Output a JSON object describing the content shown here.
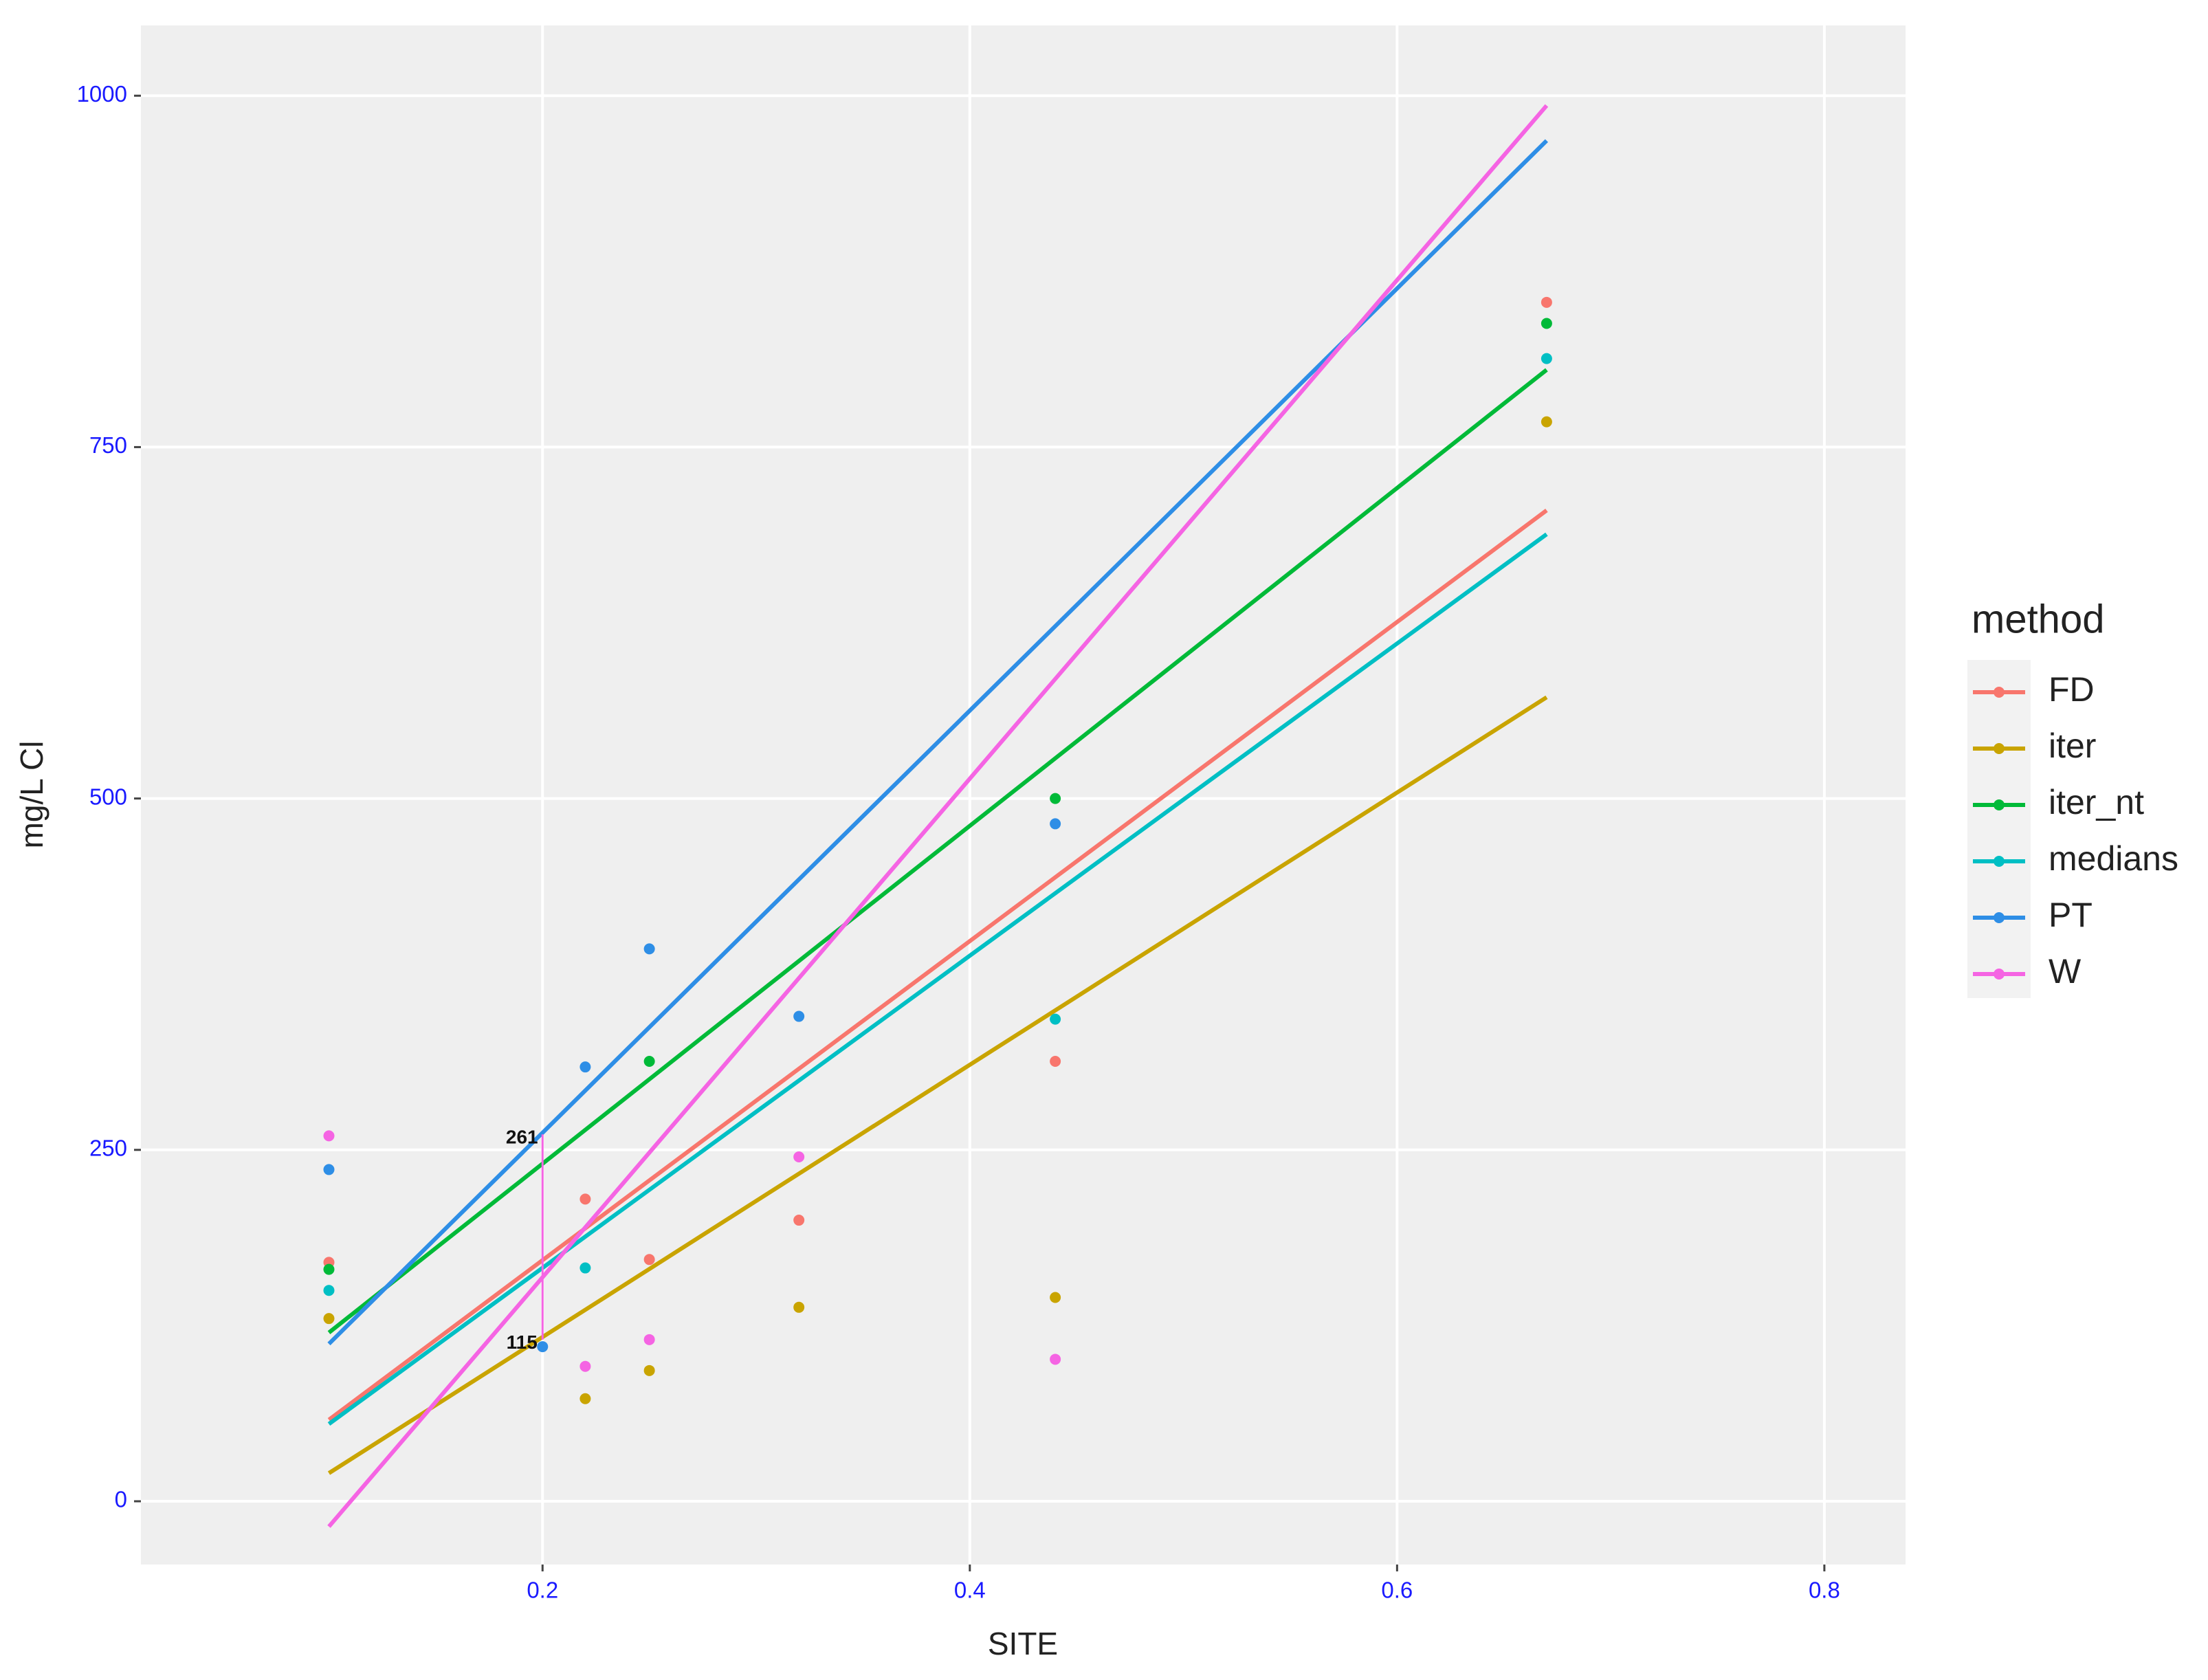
{
  "chart_data": {
    "type": "scatter",
    "x_label": "SITE",
    "y_label": "mg/L Cl",
    "legend_title": "method",
    "xlim": [
      0.012,
      0.838
    ],
    "ylim": [
      -45,
      1050
    ],
    "xticks": [
      0.2,
      0.4,
      0.6,
      0.8
    ],
    "yticks": [
      0,
      250,
      500,
      750,
      1000
    ],
    "grid": true,
    "legend": "right",
    "x": [
      0.1,
      0.2,
      0.22,
      0.25,
      0.32,
      0.44,
      0.67
    ],
    "fit_x": [
      0.1,
      0.67
    ],
    "series": [
      {
        "name": "FD",
        "color": "#f8766d",
        "values": [
          170,
          null,
          215,
          172,
          200,
          313,
          853
        ],
        "fit": [
          58,
          705
        ]
      },
      {
        "name": "iter",
        "color": "#c9a400",
        "values": [
          130,
          null,
          73,
          93,
          138,
          145,
          768
        ],
        "fit": [
          20,
          572
        ]
      },
      {
        "name": "iter_nt",
        "color": "#00ba38",
        "values": [
          165,
          null,
          null,
          313,
          null,
          500,
          838
        ],
        "fit": [
          120,
          805
        ]
      },
      {
        "name": "medians",
        "color": "#00bfc4",
        "values": [
          150,
          null,
          166,
          null,
          null,
          343,
          813
        ],
        "fit": [
          55,
          688
        ]
      },
      {
        "name": "PT",
        "color": "#2e8ee6",
        "values": [
          236,
          110,
          309,
          393,
          345,
          482,
          null
        ],
        "fit": [
          112,
          968
        ]
      },
      {
        "name": "W",
        "color": "#f564e3",
        "values": [
          260,
          null,
          96,
          115,
          245,
          101,
          null
        ],
        "fit": [
          -18,
          993
        ]
      }
    ],
    "annotations": {
      "x": 0.2,
      "values": [
        261,
        115
      ]
    }
  }
}
